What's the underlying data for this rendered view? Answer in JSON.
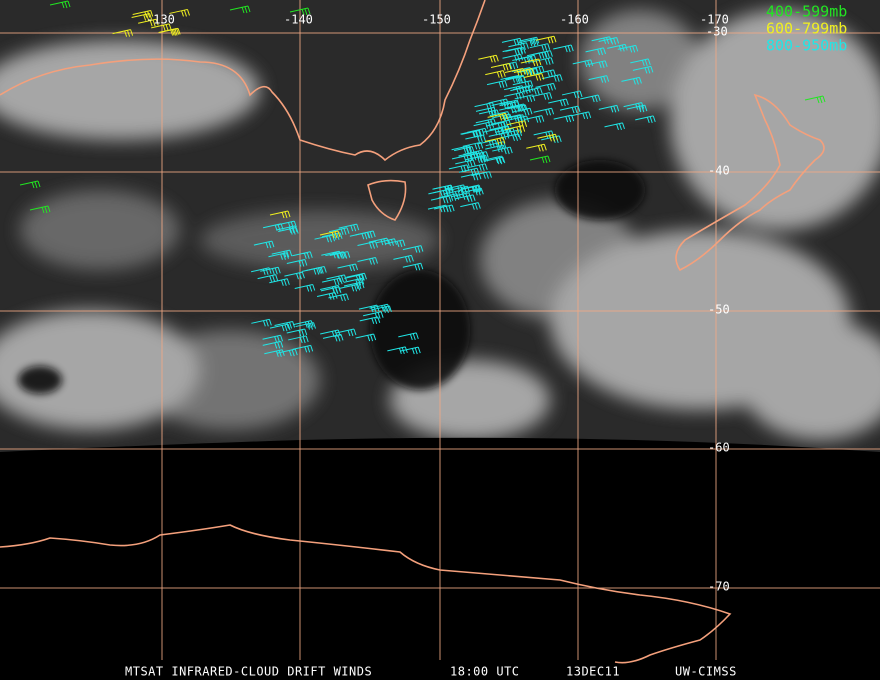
{
  "map": {
    "lon_labels": [
      "-130",
      "-140",
      "-150",
      "-160",
      "-170"
    ],
    "lat_labels": [
      "-30",
      "-40",
      "-50",
      "-60",
      "-70"
    ],
    "legend": [
      "400-599mb",
      "600-799mb",
      "800-950mb"
    ],
    "footer": [
      "MTSAT INFRARED-CLOUD DRIFT WINDS",
      "18:00 UTC",
      "13DEC11",
      "UW-CIMSS"
    ]
  }
}
